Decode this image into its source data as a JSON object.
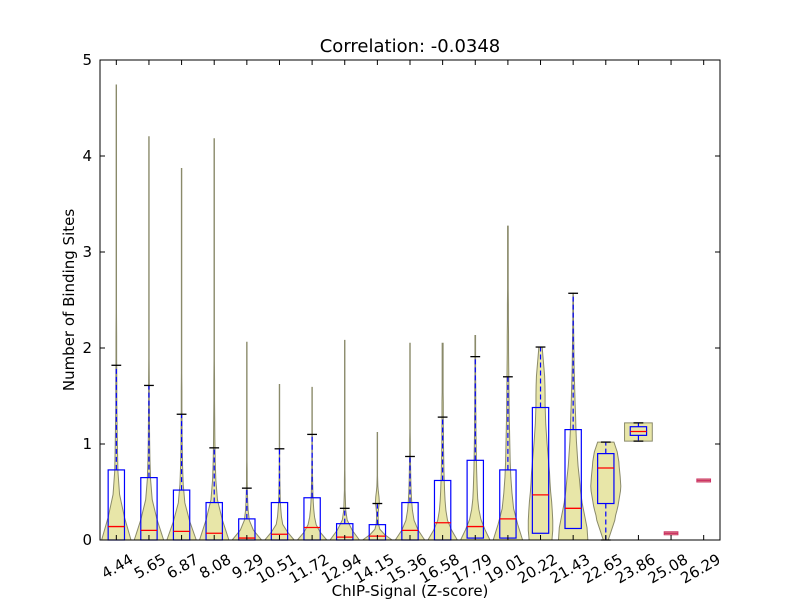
{
  "chart_data": {
    "type": "violin-box",
    "title": "Correlation: -0.0348",
    "xlabel": "ChIP-Signal (Z-score)",
    "ylabel": "Number of Binding Sites",
    "ylim": [
      0,
      5
    ],
    "yticks": [
      "0",
      "1",
      "2",
      "3",
      "4",
      "5"
    ],
    "grid": false,
    "categories": [
      "4.44",
      "5.65",
      "6.87",
      "8.08",
      "9.29",
      "10.51",
      "11.72",
      "12.94",
      "14.15",
      "15.36",
      "16.58",
      "17.79",
      "19.01",
      "20.22",
      "21.43",
      "22.65",
      "23.86",
      "25.08",
      "26.29"
    ],
    "series": [
      {
        "median": 0.14,
        "q1": 0.0,
        "q3": 0.73,
        "whisker_low": 0.0,
        "whisker_high": 1.82,
        "max": 4.74,
        "hw": [
          0.9,
          0.5,
          0.2,
          0.1,
          0.07,
          0.05,
          0.03,
          0.03,
          0.02,
          0.02,
          0.01,
          0.01,
          0.01,
          0.01,
          0.01,
          0.01,
          0.01,
          0.01,
          0.01,
          0.01,
          0.01
        ]
      },
      {
        "median": 0.1,
        "q1": 0.0,
        "q3": 0.65,
        "whisker_low": 0.0,
        "whisker_high": 1.61,
        "max": 4.2,
        "hw": [
          0.9,
          0.5,
          0.2,
          0.1,
          0.06,
          0.04,
          0.03,
          0.02,
          0.02,
          0.01,
          0.01,
          0.01,
          0.01,
          0.01,
          0.01,
          0.01,
          0.01,
          0.01,
          0.01,
          0.01,
          0.01
        ]
      },
      {
        "median": 0.09,
        "q1": 0.0,
        "q3": 0.52,
        "whisker_low": 0.0,
        "whisker_high": 1.31,
        "max": 3.87,
        "hw": [
          0.9,
          0.5,
          0.2,
          0.1,
          0.06,
          0.04,
          0.03,
          0.02,
          0.02,
          0.01,
          0.01,
          0.01,
          0.01,
          0.01,
          0.01,
          0.01,
          0.01,
          0.01,
          0.01,
          0.01,
          0.01
        ]
      },
      {
        "median": 0.07,
        "q1": 0.0,
        "q3": 0.39,
        "whisker_low": 0.0,
        "whisker_high": 0.96,
        "max": 4.18,
        "hw": [
          0.9,
          0.5,
          0.2,
          0.1,
          0.06,
          0.04,
          0.03,
          0.02,
          0.02,
          0.01,
          0.01,
          0.01,
          0.01,
          0.01,
          0.01,
          0.01,
          0.01,
          0.01,
          0.01,
          0.01,
          0.01
        ]
      },
      {
        "median": 0.02,
        "q1": 0.0,
        "q3": 0.22,
        "whisker_low": 0.0,
        "whisker_high": 0.54,
        "max": 2.06,
        "hw": [
          0.9,
          0.4,
          0.15,
          0.08,
          0.05,
          0.03,
          0.02,
          0.02,
          0.01,
          0.01,
          0.01,
          0.01,
          0.01,
          0.01,
          0.01,
          0.01,
          0.01,
          0.01,
          0.01,
          0.01,
          0.01
        ]
      },
      {
        "median": 0.06,
        "q1": 0.0,
        "q3": 0.39,
        "whisker_low": 0.0,
        "whisker_high": 0.95,
        "max": 1.62,
        "hw": [
          0.9,
          0.5,
          0.2,
          0.12,
          0.08,
          0.05,
          0.04,
          0.03,
          0.02,
          0.02,
          0.01,
          0.01,
          0.01,
          0.01,
          0.01,
          0.01,
          0.01,
          0.01,
          0.01,
          0.01,
          0.01
        ]
      },
      {
        "median": 0.13,
        "q1": 0.0,
        "q3": 0.44,
        "whisker_low": 0.0,
        "whisker_high": 1.1,
        "max": 1.59,
        "hw": [
          0.9,
          0.5,
          0.25,
          0.15,
          0.1,
          0.07,
          0.05,
          0.04,
          0.03,
          0.02,
          0.02,
          0.01,
          0.01,
          0.01,
          0.01,
          0.01,
          0.01,
          0.01,
          0.01,
          0.01,
          0.01
        ]
      },
      {
        "median": 0.03,
        "q1": 0.0,
        "q3": 0.17,
        "whisker_low": 0.0,
        "whisker_high": 0.33,
        "max": 2.08,
        "hw": [
          0.9,
          0.45,
          0.15,
          0.06,
          0.04,
          0.02,
          0.02,
          0.01,
          0.01,
          0.01,
          0.01,
          0.01,
          0.01,
          0.01,
          0.01,
          0.01,
          0.01,
          0.01,
          0.01,
          0.01,
          0.01
        ]
      },
      {
        "median": 0.04,
        "q1": 0.0,
        "q3": 0.16,
        "whisker_low": 0.0,
        "whisker_high": 0.38,
        "max": 1.12,
        "hw": [
          0.9,
          0.45,
          0.15,
          0.07,
          0.05,
          0.05,
          0.08,
          0.12,
          0.1,
          0.06,
          0.03,
          0.02,
          0.01,
          0.01,
          0.01,
          0.01,
          0.01,
          0.01,
          0.01,
          0.01,
          0.01
        ]
      },
      {
        "median": 0.1,
        "q1": 0.0,
        "q3": 0.39,
        "whisker_low": 0.0,
        "whisker_high": 0.87,
        "max": 2.05,
        "hw": [
          0.9,
          0.5,
          0.25,
          0.15,
          0.1,
          0.07,
          0.05,
          0.04,
          0.03,
          0.02,
          0.02,
          0.01,
          0.01,
          0.01,
          0.01,
          0.01,
          0.01,
          0.01,
          0.01,
          0.01,
          0.01
        ]
      },
      {
        "median": 0.18,
        "q1": 0.0,
        "q3": 0.62,
        "whisker_low": 0.0,
        "whisker_high": 1.28,
        "max": 2.05,
        "hw": [
          0.9,
          0.55,
          0.3,
          0.2,
          0.15,
          0.12,
          0.1,
          0.08,
          0.07,
          0.06,
          0.05,
          0.05,
          0.04,
          0.04,
          0.04,
          0.03,
          0.03,
          0.03,
          0.03,
          0.03,
          0.03
        ]
      },
      {
        "median": 0.14,
        "q1": 0.02,
        "q3": 0.83,
        "whisker_low": 0.02,
        "whisker_high": 1.91,
        "max": 2.13,
        "hw": [
          0.9,
          0.6,
          0.35,
          0.22,
          0.15,
          0.12,
          0.1,
          0.08,
          0.07,
          0.06,
          0.05,
          0.04,
          0.04,
          0.03,
          0.03,
          0.03,
          0.02,
          0.02,
          0.02,
          0.02,
          0.02
        ]
      },
      {
        "median": 0.22,
        "q1": 0.02,
        "q3": 0.73,
        "whisker_low": 0.02,
        "whisker_high": 1.7,
        "max": 3.27,
        "hw": [
          0.9,
          0.6,
          0.35,
          0.25,
          0.18,
          0.14,
          0.12,
          0.1,
          0.08,
          0.07,
          0.06,
          0.05,
          0.04,
          0.04,
          0.03,
          0.03,
          0.02,
          0.02,
          0.02,
          0.02,
          0.02
        ]
      },
      {
        "median": 0.47,
        "q1": 0.07,
        "q3": 1.38,
        "whisker_low": 0.07,
        "whisker_high": 2.01,
        "max": 2.01,
        "hw": [
          0.7,
          0.75,
          0.75,
          0.72,
          0.68,
          0.62,
          0.58,
          0.55,
          0.5,
          0.45,
          0.4,
          0.36,
          0.32,
          0.3,
          0.28,
          0.28,
          0.27,
          0.25,
          0.2,
          0.15,
          0.1
        ]
      },
      {
        "median": 0.33,
        "q1": 0.12,
        "q3": 1.15,
        "whisker_low": 0.12,
        "whisker_high": 2.57,
        "max": 2.57,
        "hw": [
          0.9,
          0.85,
          0.7,
          0.55,
          0.45,
          0.38,
          0.3,
          0.25,
          0.2,
          0.17,
          0.15,
          0.12,
          0.1,
          0.08,
          0.06,
          0.05,
          0.04,
          0.03,
          0.02,
          0.02,
          0.01
        ]
      },
      {
        "median": 0.75,
        "q1": 0.38,
        "q3": 0.9,
        "whisker_low": 0.0,
        "whisker_high": 1.02,
        "max": 1.02,
        "hw": [
          0.15,
          0.25,
          0.35,
          0.45,
          0.55,
          0.6,
          0.68,
          0.75,
          0.8,
          0.85,
          0.9,
          0.92,
          0.9,
          0.88,
          0.85,
          0.82,
          0.8,
          0.75,
          0.7,
          0.6,
          0.5
        ]
      },
      {
        "median": 1.13,
        "q1": 1.09,
        "q3": 1.18,
        "whisker_low": 1.03,
        "whisker_high": 1.22,
        "max": 1.22,
        "hw": [
          0.85,
          0.85,
          0.85,
          0.85,
          0.85,
          0.85,
          0.85,
          0.85,
          0.85,
          0.85,
          0.85,
          0.85,
          0.85,
          0.85,
          0.85,
          0.85,
          0.85,
          0.85,
          0.85,
          0.85,
          0.85
        ]
      },
      {
        "median": 0.07,
        "q1": 0.07,
        "q3": 0.07,
        "whisker_low": 0.07,
        "whisker_high": 0.07,
        "max": 0.07,
        "hw": [
          0.4,
          0.4,
          0.4,
          0.4,
          0.4,
          0.4,
          0.4,
          0.4,
          0.4,
          0.4,
          0.4,
          0.4,
          0.4,
          0.4,
          0.4,
          0.4,
          0.4,
          0.4,
          0.4,
          0.4,
          0.4
        ]
      },
      {
        "median": 0.62,
        "q1": 0.62,
        "q3": 0.62,
        "whisker_low": 0.62,
        "whisker_high": 0.62,
        "max": 0.62,
        "hw": [
          0.45,
          0.45,
          0.45,
          0.45,
          0.45,
          0.45,
          0.45,
          0.45,
          0.45,
          0.45,
          0.45,
          0.45,
          0.45,
          0.45,
          0.45,
          0.45,
          0.45,
          0.45,
          0.45,
          0.45,
          0.45
        ]
      }
    ],
    "colors": {
      "violin_fill": "#e8e6a8",
      "violin_edge": "#8a8a6a",
      "box": "#0000ff",
      "median": "#ff0000",
      "whisker": "#0000ff",
      "cap": "#000000"
    }
  }
}
